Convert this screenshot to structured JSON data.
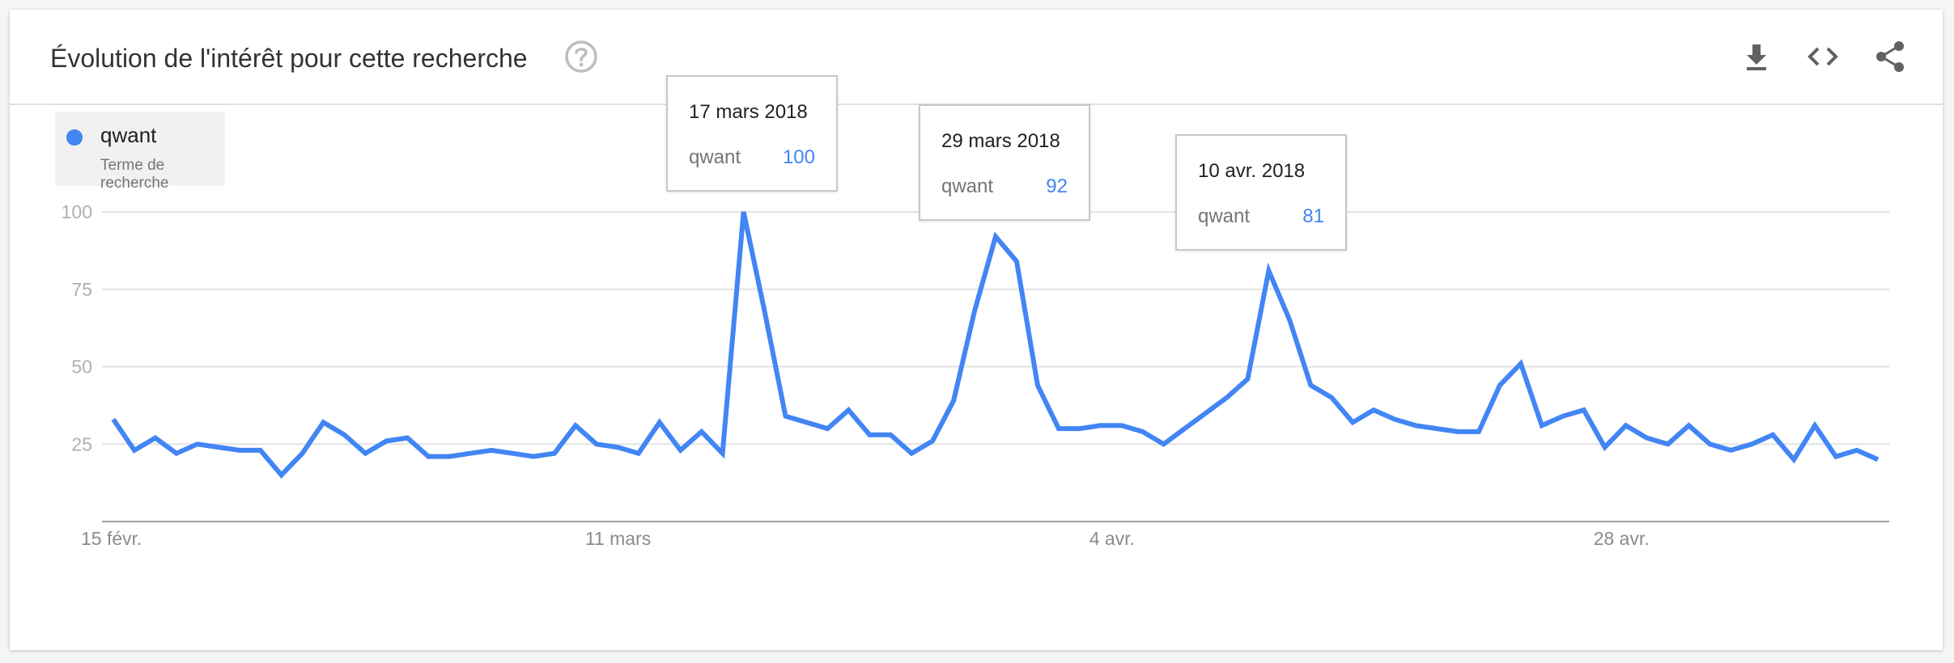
{
  "header": {
    "title": "Évolution de l'intérêt pour cette recherche",
    "icons": [
      "help-icon",
      "download-icon",
      "embed-icon",
      "share-icon"
    ]
  },
  "legend": {
    "term": "qwant",
    "subtitle": "Terme de recherche",
    "color": "#4285f4"
  },
  "tooltips": [
    {
      "date": "17 mars 2018",
      "name": "qwant",
      "value": "100"
    },
    {
      "date": "29 mars 2018",
      "name": "qwant",
      "value": "92"
    },
    {
      "date": "10 avr. 2018",
      "name": "qwant",
      "value": "81"
    }
  ],
  "chart_data": {
    "type": "line",
    "title": "",
    "xlabel": "",
    "ylabel": "",
    "ylim": [
      0,
      100
    ],
    "yticks": [
      25,
      50,
      75,
      100
    ],
    "x_tick_labels": [
      "15 févr.",
      "11 mars",
      "4 avr.",
      "28 avr."
    ],
    "x_start": "15 févr.",
    "x_end": "7 mai",
    "grid": true,
    "color": "#4285f4",
    "series": [
      {
        "name": "qwant",
        "values": [
          33,
          23,
          27,
          22,
          25,
          24,
          23,
          23,
          15,
          22,
          32,
          28,
          22,
          26,
          27,
          21,
          21,
          22,
          23,
          22,
          21,
          22,
          31,
          25,
          24,
          22,
          32,
          23,
          29,
          22,
          100,
          68,
          34,
          32,
          30,
          36,
          28,
          28,
          22,
          26,
          39,
          68,
          92,
          84,
          44,
          30,
          30,
          31,
          31,
          29,
          25,
          30,
          35,
          40,
          46,
          81,
          65,
          44,
          40,
          32,
          36,
          33,
          31,
          30,
          29,
          29,
          44,
          51,
          31,
          34,
          36,
          24,
          31,
          27,
          25,
          31,
          25,
          23,
          25,
          28,
          20,
          31,
          21,
          23,
          20
        ]
      }
    ]
  }
}
